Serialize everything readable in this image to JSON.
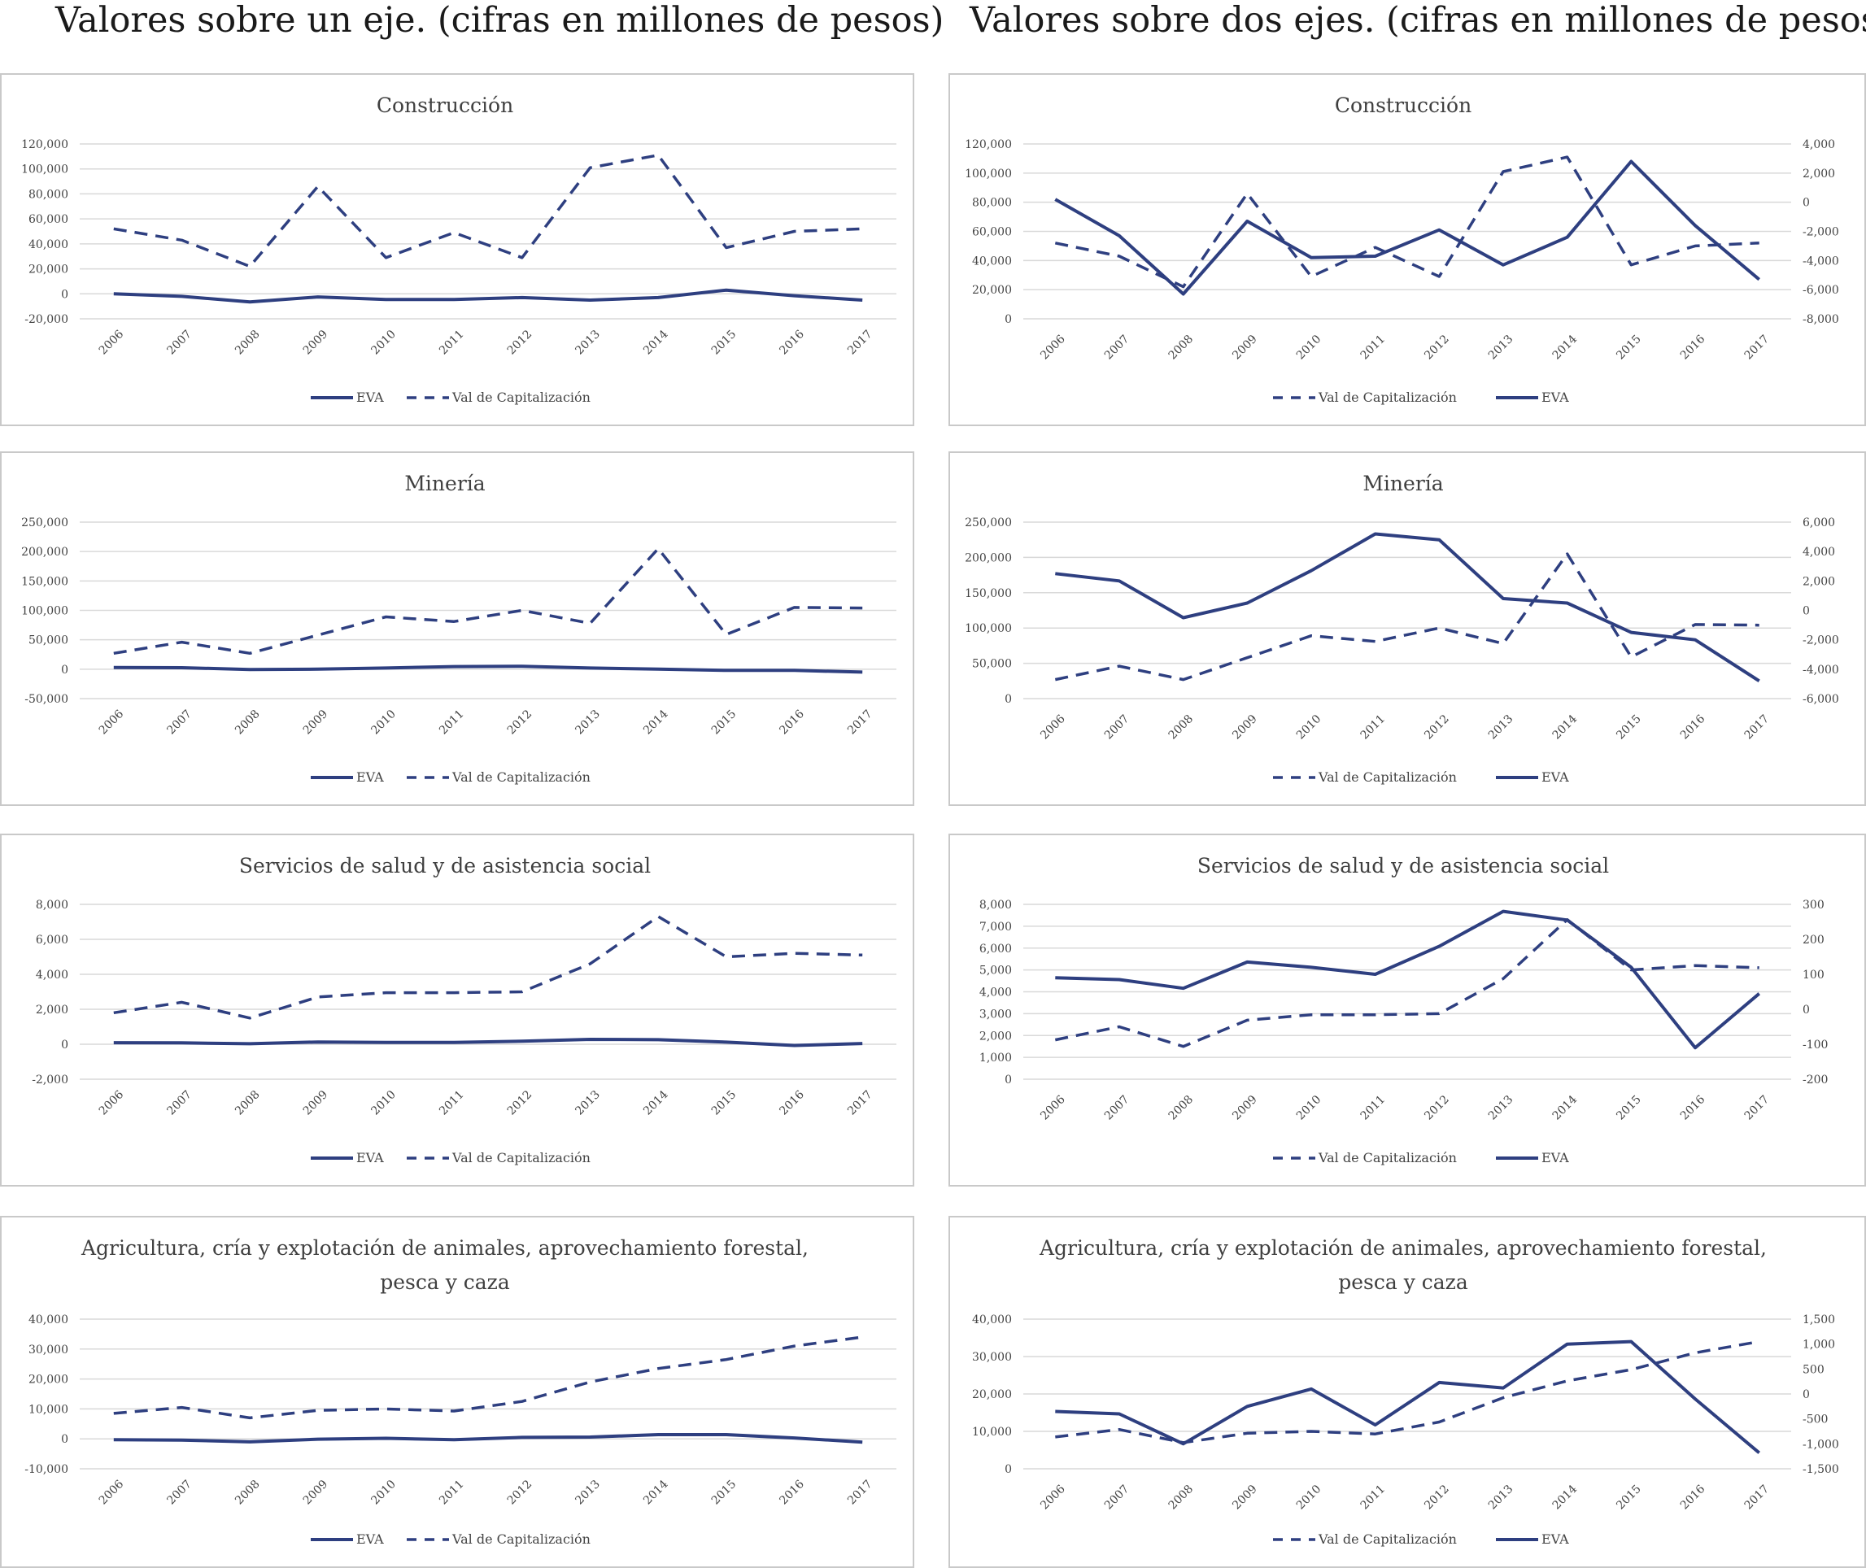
{
  "titles": {
    "left": "Valores sobre un eje. (cifras en millones de pesos)",
    "right": "Valores sobre dos ejes. (cifras en millones de pesos)"
  },
  "colors": {
    "series": "#2e3f80",
    "grid": "#d9d9d9",
    "axis_text": "#444444",
    "title_text": "#404040"
  },
  "legend": {
    "eva": "EVA",
    "val": "Val de Capitalización"
  },
  "chart_data": [
    {
      "type": "line",
      "layout": "single-axis",
      "title": [
        "Construcción"
      ],
      "x": [
        "2006",
        "2007",
        "2008",
        "2009",
        "2010",
        "2011",
        "2012",
        "2013",
        "2014",
        "2015",
        "2016",
        "2017"
      ],
      "yticks": [
        "-20,000",
        "0",
        "20,000",
        "40,000",
        "60,000",
        "80,000",
        "100,000",
        "120,000"
      ],
      "ylim": [
        -20000,
        120000
      ],
      "series": [
        {
          "name": "EVA",
          "style": "solid",
          "values": [
            0,
            -2000,
            -6500,
            -2500,
            -4500,
            -4500,
            -3000,
            -5000,
            -3000,
            3000,
            -1500,
            -5000
          ]
        },
        {
          "name": "Val de Capitalización",
          "style": "dashed",
          "values": [
            52000,
            43000,
            22000,
            86000,
            29000,
            49000,
            29000,
            101000,
            111000,
            37000,
            50000,
            52000
          ]
        }
      ],
      "legend_order": [
        "EVA",
        "Val de Capitalización"
      ]
    },
    {
      "type": "line",
      "layout": "dual-axis",
      "title": [
        "Construcción"
      ],
      "x": [
        "2006",
        "2007",
        "2008",
        "2009",
        "2010",
        "2011",
        "2012",
        "2013",
        "2014",
        "2015",
        "2016",
        "2017"
      ],
      "yticks": [
        "0",
        "20,000",
        "40,000",
        "60,000",
        "80,000",
        "100,000",
        "120,000"
      ],
      "ylim": [
        0,
        120000
      ],
      "y2ticks": [
        "-8,000",
        "-6,000",
        "-4,000",
        "-2,000",
        "0",
        "2,000",
        "4,000"
      ],
      "y2lim": [
        -8000,
        4000
      ],
      "series": [
        {
          "name": "Val de Capitalización",
          "style": "dashed",
          "axis": "left",
          "values": [
            52000,
            43000,
            22000,
            86000,
            29000,
            49000,
            29000,
            101000,
            111000,
            37000,
            50000,
            52000
          ]
        },
        {
          "name": "EVA",
          "style": "solid",
          "axis": "right",
          "values": [
            200,
            -2300,
            -6300,
            -1300,
            -3800,
            -3700,
            -1900,
            -4300,
            -2400,
            2800,
            -1600,
            -5300
          ]
        }
      ],
      "legend_order": [
        "Val de Capitalización",
        "EVA"
      ]
    },
    {
      "type": "line",
      "layout": "single-axis",
      "title": [
        "Minería"
      ],
      "x": [
        "2006",
        "2007",
        "2008",
        "2009",
        "2010",
        "2011",
        "2012",
        "2013",
        "2014",
        "2015",
        "2016",
        "2017"
      ],
      "yticks": [
        "-50,000",
        "0",
        "50,000",
        "100,000",
        "150,000",
        "200,000",
        "250,000"
      ],
      "ylim": [
        -50000,
        250000
      ],
      "series": [
        {
          "name": "EVA",
          "style": "solid",
          "values": [
            3000,
            2500,
            -500,
            0,
            2000,
            4500,
            5000,
            2000,
            0,
            -2000,
            -2000,
            -5000
          ]
        },
        {
          "name": "Val de Capitalización",
          "style": "dashed",
          "values": [
            27000,
            46000,
            27000,
            58000,
            89000,
            81000,
            100000,
            78000,
            205000,
            59000,
            105000,
            104000
          ]
        }
      ],
      "legend_order": [
        "EVA",
        "Val de Capitalización"
      ]
    },
    {
      "type": "line",
      "layout": "dual-axis",
      "title": [
        "Minería"
      ],
      "x": [
        "2006",
        "2007",
        "2008",
        "2009",
        "2010",
        "2011",
        "2012",
        "2013",
        "2014",
        "2015",
        "2016",
        "2017"
      ],
      "yticks": [
        "0",
        "50,000",
        "100,000",
        "150,000",
        "200,000",
        "250,000"
      ],
      "ylim": [
        0,
        250000
      ],
      "y2ticks": [
        "-6,000",
        "-4,000",
        "-2,000",
        "0",
        "2,000",
        "4,000",
        "6,000"
      ],
      "y2lim": [
        -6000,
        6000
      ],
      "series": [
        {
          "name": "Val de Capitalización",
          "style": "dashed",
          "axis": "left",
          "values": [
            27000,
            46000,
            27000,
            58000,
            89000,
            81000,
            100000,
            78000,
            205000,
            59000,
            105000,
            104000
          ]
        },
        {
          "name": "EVA",
          "style": "solid",
          "axis": "right",
          "values": [
            2500,
            2000,
            -500,
            500,
            2700,
            5200,
            4800,
            800,
            500,
            -1500,
            -2000,
            -4800
          ]
        }
      ],
      "legend_order": [
        "Val de Capitalización",
        "EVA"
      ]
    },
    {
      "type": "line",
      "layout": "single-axis",
      "title": [
        "Servicios de salud y de asistencia social"
      ],
      "x": [
        "2006",
        "2007",
        "2008",
        "2009",
        "2010",
        "2011",
        "2012",
        "2013",
        "2014",
        "2015",
        "2016",
        "2017"
      ],
      "yticks": [
        "-2,000",
        "0",
        "2,000",
        "4,000",
        "6,000",
        "8,000"
      ],
      "ylim": [
        -2000,
        8000
      ],
      "series": [
        {
          "name": "EVA",
          "style": "solid",
          "values": [
            90,
            80,
            30,
            130,
            100,
            100,
            170,
            280,
            260,
            120,
            -70,
            40
          ]
        },
        {
          "name": "Val de Capitalización",
          "style": "dashed",
          "values": [
            1800,
            2400,
            1500,
            2700,
            2950,
            2950,
            3000,
            4600,
            7300,
            5000,
            5200,
            5100
          ]
        }
      ],
      "legend_order": [
        "EVA",
        "Val de Capitalización"
      ]
    },
    {
      "type": "line",
      "layout": "dual-axis",
      "title": [
        "Servicios de salud y de asistencia social"
      ],
      "x": [
        "2006",
        "2007",
        "2008",
        "2009",
        "2010",
        "2011",
        "2012",
        "2013",
        "2014",
        "2015",
        "2016",
        "2017"
      ],
      "yticks": [
        "0",
        "1,000",
        "2,000",
        "3,000",
        "4,000",
        "5,000",
        "6,000",
        "7,000",
        "8,000"
      ],
      "ylim": [
        0,
        8000
      ],
      "y2ticks": [
        "-200",
        "-100",
        "0",
        "100",
        "200",
        "300"
      ],
      "y2lim": [
        -200,
        300
      ],
      "series": [
        {
          "name": "Val de Capitalización",
          "style": "dashed",
          "axis": "left",
          "values": [
            1800,
            2400,
            1500,
            2700,
            2950,
            2950,
            3000,
            4600,
            7300,
            5000,
            5200,
            5100
          ]
        },
        {
          "name": "EVA",
          "style": "solid",
          "axis": "right",
          "values": [
            90,
            85,
            60,
            135,
            120,
            100,
            180,
            280,
            255,
            120,
            -110,
            45
          ]
        }
      ],
      "legend_order": [
        "Val de Capitalización",
        "EVA"
      ]
    },
    {
      "type": "line",
      "layout": "single-axis",
      "title": [
        "Agricultura, cría y explotación de animales, aprovechamiento forestal,",
        "pesca y caza"
      ],
      "x": [
        "2006",
        "2007",
        "2008",
        "2009",
        "2010",
        "2011",
        "2012",
        "2013",
        "2014",
        "2015",
        "2016",
        "2017"
      ],
      "yticks": [
        "-10,000",
        "0",
        "10,000",
        "20,000",
        "30,000",
        "40,000"
      ],
      "ylim": [
        -10000,
        40000
      ],
      "series": [
        {
          "name": "EVA",
          "style": "solid",
          "values": [
            -300,
            -400,
            -1000,
            -100,
            200,
            -300,
            500,
            600,
            1400,
            1400,
            300,
            -1100
          ]
        },
        {
          "name": "Val de Capitalización",
          "style": "dashed",
          "values": [
            8500,
            10500,
            7000,
            9500,
            10000,
            9300,
            12500,
            19000,
            23500,
            26500,
            31000,
            34000
          ]
        }
      ],
      "legend_order": [
        "EVA",
        "Val de Capitalización"
      ]
    },
    {
      "type": "line",
      "layout": "dual-axis",
      "title": [
        "Agricultura, cría y explotación de animales, aprovechamiento forestal,",
        "pesca y caza"
      ],
      "x": [
        "2006",
        "2007",
        "2008",
        "2009",
        "2010",
        "2011",
        "2012",
        "2013",
        "2014",
        "2015",
        "2016",
        "2017"
      ],
      "yticks": [
        "0",
        "10,000",
        "20,000",
        "30,000",
        "40,000"
      ],
      "ylim": [
        0,
        40000
      ],
      "y2ticks": [
        "-1,500",
        "-1,000",
        "-500",
        "0",
        "500",
        "1,000",
        "1,500"
      ],
      "y2lim": [
        -1500,
        1500
      ],
      "series": [
        {
          "name": "Val de Capitalización",
          "style": "dashed",
          "axis": "left",
          "values": [
            8500,
            10500,
            7000,
            9500,
            10000,
            9300,
            12500,
            19000,
            23500,
            26500,
            31000,
            34000
          ]
        },
        {
          "name": "EVA",
          "style": "solid",
          "axis": "right",
          "values": [
            -350,
            -400,
            -1000,
            -250,
            100,
            -620,
            230,
            120,
            1000,
            1050,
            -100,
            -1180
          ]
        }
      ],
      "legend_order": [
        "Val de Capitalización",
        "EVA"
      ]
    }
  ]
}
